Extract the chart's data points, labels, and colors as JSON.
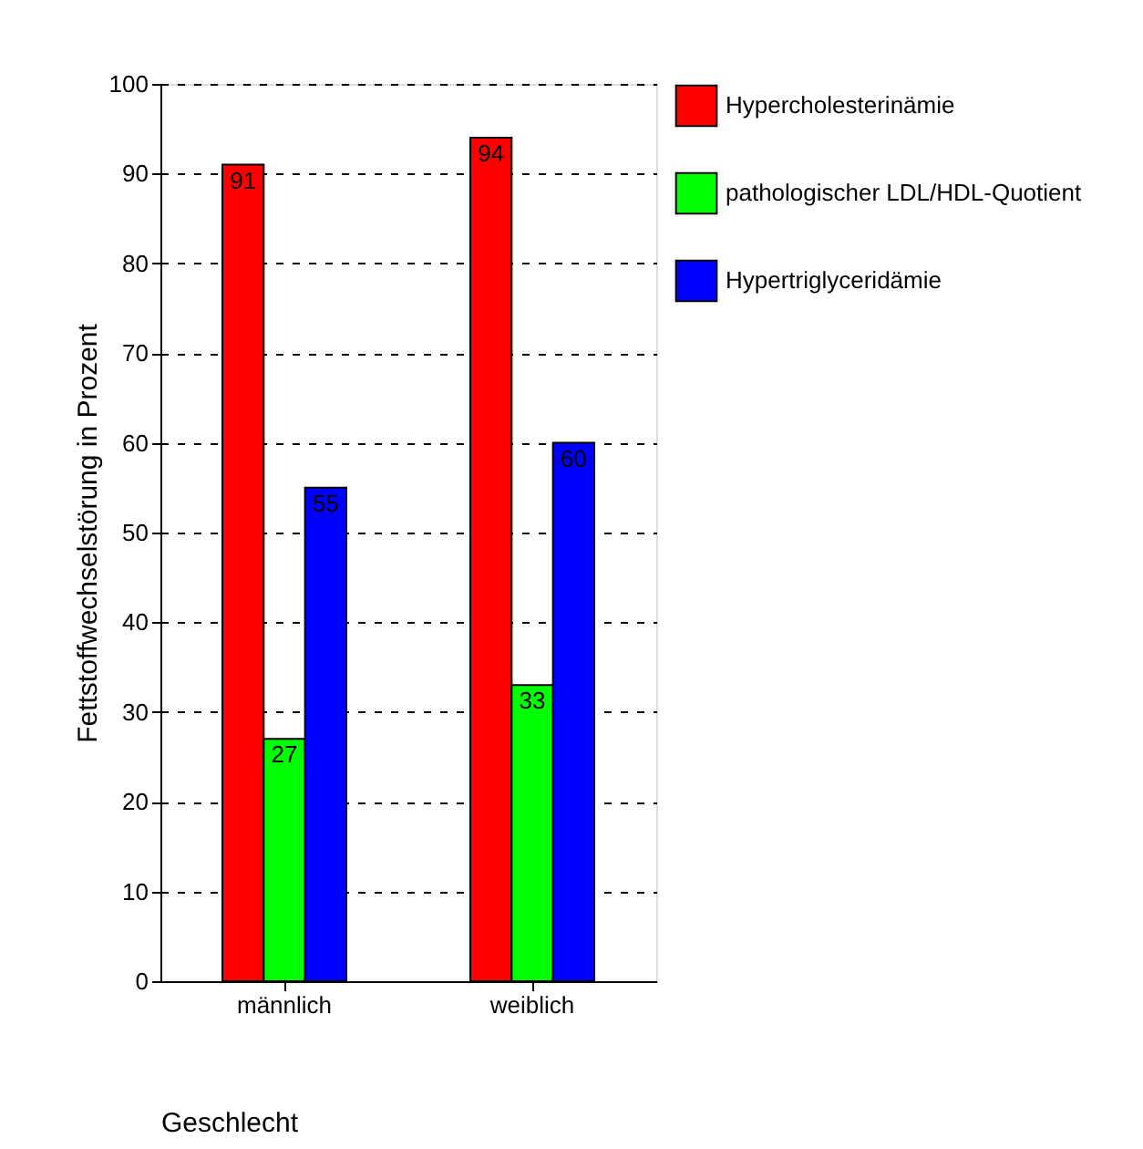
{
  "chart_data": {
    "type": "bar",
    "xlabel": "Geschlecht",
    "ylabel": "Fettstoffwechselstörung in Prozent",
    "categories": [
      "männlich",
      "weiblich"
    ],
    "series": [
      {
        "name": "Hypercholesterinämie",
        "color": "#ff0000",
        "values": [
          91,
          94
        ]
      },
      {
        "name": "pathologischer LDL/HDL-Quotient",
        "color": "#00ff00",
        "values": [
          27,
          33
        ]
      },
      {
        "name": "Hypertriglyceridämie",
        "color": "#0000ff",
        "values": [
          55,
          60
        ]
      }
    ],
    "ylim": [
      0,
      100
    ],
    "yticks": [
      0,
      10,
      20,
      30,
      40,
      50,
      60,
      70,
      80,
      90,
      100
    ],
    "grid": "y",
    "legend": "right",
    "data_labels": true
  }
}
